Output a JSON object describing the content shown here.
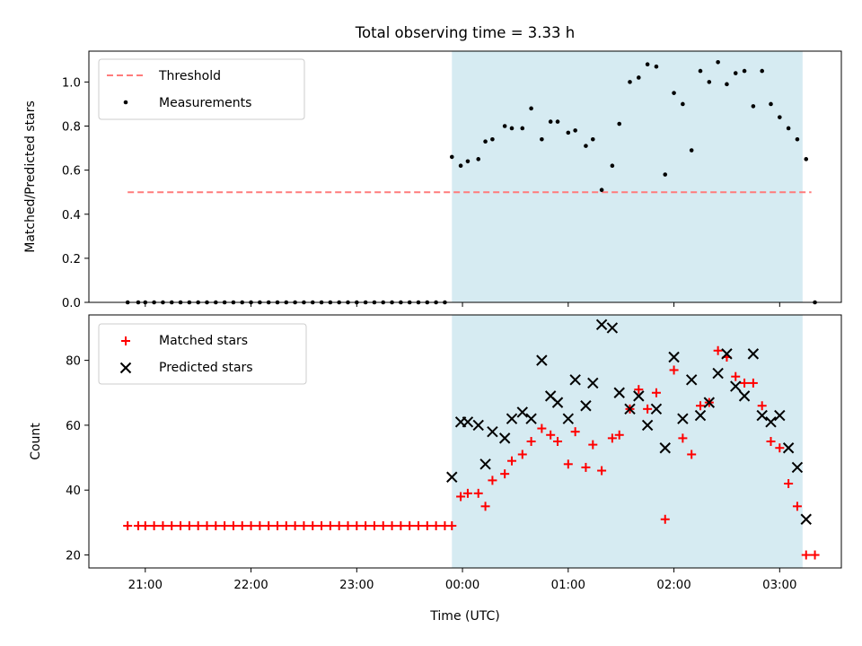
{
  "figure_title": "Total observing time = 3.33 h",
  "colors": {
    "threshold": "#ff7b7b",
    "matched": "#ff0000",
    "predicted": "#000000",
    "measurement": "#000000",
    "shade": "#add8e6"
  },
  "chart_data": [
    {
      "type": "scatter",
      "name": "ratio-panel",
      "title": "Total observing time = 3.33 h",
      "ylabel": "Matched/Predicted stars",
      "xlabel": "",
      "x_unit": "hours after 21:00 UTC",
      "xlim": [
        "20:28",
        "03:35"
      ],
      "ylim": [
        0,
        1.14
      ],
      "y_ticks": [
        0.0,
        0.2,
        0.4,
        0.6,
        0.8,
        1.0
      ],
      "y_tick_labels": [
        "0.0",
        "0.2",
        "0.4",
        "0.6",
        "0.8",
        "1.0"
      ],
      "shaded_interval": [
        "23:54",
        "03:13"
      ],
      "legend": {
        "position": "top-left",
        "entries": [
          "Threshold",
          "Measurements"
        ]
      },
      "threshold": {
        "name": "Threshold",
        "value": 0.5,
        "x_range": [
          "20:50",
          "03:18"
        ],
        "style": "dashed"
      },
      "series": [
        {
          "name": "Measurements",
          "marker": "dot",
          "points": [
            [
              "20:50",
              0
            ],
            [
              "20:56",
              0
            ],
            [
              "21:00",
              0
            ],
            [
              "21:05",
              0
            ],
            [
              "21:10",
              0
            ],
            [
              "21:15",
              0
            ],
            [
              "21:20",
              0
            ],
            [
              "21:25",
              0
            ],
            [
              "21:30",
              0
            ],
            [
              "21:35",
              0
            ],
            [
              "21:40",
              0
            ],
            [
              "21:45",
              0
            ],
            [
              "21:50",
              0
            ],
            [
              "21:55",
              0
            ],
            [
              "22:00",
              0
            ],
            [
              "22:05",
              0
            ],
            [
              "22:10",
              0
            ],
            [
              "22:15",
              0
            ],
            [
              "22:20",
              0
            ],
            [
              "22:25",
              0
            ],
            [
              "22:30",
              0
            ],
            [
              "22:35",
              0
            ],
            [
              "22:40",
              0
            ],
            [
              "22:45",
              0
            ],
            [
              "22:50",
              0
            ],
            [
              "22:55",
              0
            ],
            [
              "23:00",
              0
            ],
            [
              "23:05",
              0
            ],
            [
              "23:10",
              0
            ],
            [
              "23:15",
              0
            ],
            [
              "23:20",
              0
            ],
            [
              "23:25",
              0
            ],
            [
              "23:30",
              0
            ],
            [
              "23:35",
              0
            ],
            [
              "23:40",
              0
            ],
            [
              "23:45",
              0
            ],
            [
              "23:50",
              0
            ],
            [
              "23:54",
              0.66
            ],
            [
              "23:59",
              0.62
            ],
            [
              "00:03",
              0.64
            ],
            [
              "00:09",
              0.65
            ],
            [
              "00:13",
              0.73
            ],
            [
              "00:17",
              0.74
            ],
            [
              "00:24",
              0.8
            ],
            [
              "00:28",
              0.79
            ],
            [
              "00:34",
              0.79
            ],
            [
              "00:39",
              0.88
            ],
            [
              "00:45",
              0.74
            ],
            [
              "00:50",
              0.82
            ],
            [
              "00:54",
              0.82
            ],
            [
              "01:00",
              0.77
            ],
            [
              "01:04",
              0.78
            ],
            [
              "01:10",
              0.71
            ],
            [
              "01:14",
              0.74
            ],
            [
              "01:19",
              0.51
            ],
            [
              "01:25",
              0.62
            ],
            [
              "01:29",
              0.81
            ],
            [
              "01:35",
              1.0
            ],
            [
              "01:40",
              1.02
            ],
            [
              "01:45",
              1.08
            ],
            [
              "01:50",
              1.07
            ],
            [
              "01:55",
              0.58
            ],
            [
              "02:00",
              0.95
            ],
            [
              "02:05",
              0.9
            ],
            [
              "02:10",
              0.69
            ],
            [
              "02:15",
              1.05
            ],
            [
              "02:20",
              1.0
            ],
            [
              "02:25",
              1.09
            ],
            [
              "02:30",
              0.99
            ],
            [
              "02:35",
              1.04
            ],
            [
              "02:40",
              1.05
            ],
            [
              "02:45",
              0.89
            ],
            [
              "02:50",
              1.05
            ],
            [
              "02:55",
              0.9
            ],
            [
              "03:00",
              0.84
            ],
            [
              "03:05",
              0.79
            ],
            [
              "03:10",
              0.74
            ],
            [
              "03:15",
              0.65
            ],
            [
              "03:20",
              0.0
            ]
          ]
        }
      ]
    },
    {
      "type": "scatter",
      "name": "count-panel",
      "title": "",
      "ylabel": "Count",
      "xlabel": "Time (UTC)",
      "x_unit": "hours after 21:00 UTC",
      "xlim": [
        "20:28",
        "03:35"
      ],
      "ylim": [
        16,
        94
      ],
      "x_ticks": [
        "21:00",
        "22:00",
        "23:00",
        "00:00",
        "01:00",
        "02:00",
        "03:00"
      ],
      "y_ticks": [
        20,
        40,
        60,
        80
      ],
      "y_tick_labels": [
        "20",
        "40",
        "60",
        "80"
      ],
      "shaded_interval": [
        "23:54",
        "03:13"
      ],
      "legend": {
        "position": "top-left",
        "entries": [
          "Matched stars",
          "Predicted stars"
        ]
      },
      "series": [
        {
          "name": "Matched stars",
          "marker": "plus",
          "points": [
            [
              "20:50",
              29
            ],
            [
              "20:56",
              29
            ],
            [
              "21:00",
              29
            ],
            [
              "21:05",
              29
            ],
            [
              "21:10",
              29
            ],
            [
              "21:15",
              29
            ],
            [
              "21:20",
              29
            ],
            [
              "21:25",
              29
            ],
            [
              "21:30",
              29
            ],
            [
              "21:35",
              29
            ],
            [
              "21:40",
              29
            ],
            [
              "21:45",
              29
            ],
            [
              "21:50",
              29
            ],
            [
              "21:55",
              29
            ],
            [
              "22:00",
              29
            ],
            [
              "22:05",
              29
            ],
            [
              "22:10",
              29
            ],
            [
              "22:15",
              29
            ],
            [
              "22:20",
              29
            ],
            [
              "22:25",
              29
            ],
            [
              "22:30",
              29
            ],
            [
              "22:35",
              29
            ],
            [
              "22:40",
              29
            ],
            [
              "22:45",
              29
            ],
            [
              "22:50",
              29
            ],
            [
              "22:55",
              29
            ],
            [
              "23:00",
              29
            ],
            [
              "23:05",
              29
            ],
            [
              "23:10",
              29
            ],
            [
              "23:15",
              29
            ],
            [
              "23:20",
              29
            ],
            [
              "23:25",
              29
            ],
            [
              "23:30",
              29
            ],
            [
              "23:35",
              29
            ],
            [
              "23:40",
              29
            ],
            [
              "23:45",
              29
            ],
            [
              "23:50",
              29
            ],
            [
              "23:54",
              29
            ],
            [
              "23:59",
              38
            ],
            [
              "00:03",
              39
            ],
            [
              "00:09",
              39
            ],
            [
              "00:13",
              35
            ],
            [
              "00:17",
              43
            ],
            [
              "00:24",
              45
            ],
            [
              "00:28",
              49
            ],
            [
              "00:34",
              51
            ],
            [
              "00:39",
              55
            ],
            [
              "00:45",
              59
            ],
            [
              "00:50",
              57
            ],
            [
              "00:54",
              55
            ],
            [
              "01:00",
              48
            ],
            [
              "01:04",
              58
            ],
            [
              "01:10",
              47
            ],
            [
              "01:14",
              54
            ],
            [
              "01:19",
              46
            ],
            [
              "01:25",
              56
            ],
            [
              "01:29",
              57
            ],
            [
              "01:35",
              65
            ],
            [
              "01:40",
              71
            ],
            [
              "01:45",
              65
            ],
            [
              "01:50",
              70
            ],
            [
              "01:55",
              31
            ],
            [
              "02:00",
              77
            ],
            [
              "02:05",
              56
            ],
            [
              "02:10",
              51
            ],
            [
              "02:15",
              66
            ],
            [
              "02:20",
              67
            ],
            [
              "02:25",
              83
            ],
            [
              "02:30",
              81
            ],
            [
              "02:35",
              75
            ],
            [
              "02:40",
              73
            ],
            [
              "02:45",
              73
            ],
            [
              "02:50",
              66
            ],
            [
              "02:55",
              55
            ],
            [
              "03:00",
              53
            ],
            [
              "03:05",
              42
            ],
            [
              "03:10",
              35
            ],
            [
              "03:15",
              20
            ],
            [
              "03:20",
              20
            ]
          ]
        },
        {
          "name": "Predicted stars",
          "marker": "x",
          "points": [
            [
              "23:54",
              44
            ],
            [
              "23:59",
              61
            ],
            [
              "00:03",
              61
            ],
            [
              "00:09",
              60
            ],
            [
              "00:13",
              48
            ],
            [
              "00:17",
              58
            ],
            [
              "00:24",
              56
            ],
            [
              "00:28",
              62
            ],
            [
              "00:34",
              64
            ],
            [
              "00:39",
              62
            ],
            [
              "00:45",
              80
            ],
            [
              "00:50",
              69
            ],
            [
              "00:54",
              67
            ],
            [
              "01:00",
              62
            ],
            [
              "01:04",
              74
            ],
            [
              "01:10",
              66
            ],
            [
              "01:14",
              73
            ],
            [
              "01:19",
              91
            ],
            [
              "01:25",
              90
            ],
            [
              "01:29",
              70
            ],
            [
              "01:35",
              65
            ],
            [
              "01:40",
              69
            ],
            [
              "01:45",
              60
            ],
            [
              "01:50",
              65
            ],
            [
              "01:55",
              53
            ],
            [
              "02:00",
              81
            ],
            [
              "02:05",
              62
            ],
            [
              "02:10",
              74
            ],
            [
              "02:15",
              63
            ],
            [
              "02:20",
              67
            ],
            [
              "02:25",
              76
            ],
            [
              "02:30",
              82
            ],
            [
              "02:35",
              72
            ],
            [
              "02:40",
              69
            ],
            [
              "02:45",
              82
            ],
            [
              "02:50",
              63
            ],
            [
              "02:55",
              61
            ],
            [
              "03:00",
              63
            ],
            [
              "03:05",
              53
            ],
            [
              "03:10",
              47
            ],
            [
              "03:15",
              31
            ]
          ]
        }
      ]
    }
  ]
}
